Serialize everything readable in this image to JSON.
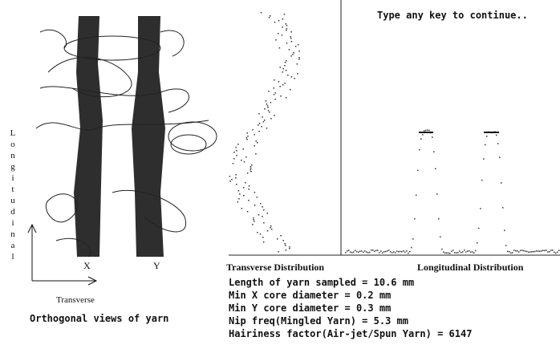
{
  "prompt": "Type any key to continue..",
  "yarn_view": {
    "caption": "Orthogonal views of yarn",
    "x_label": "X",
    "y_label": "Y",
    "axis_vertical": "Longitudinal",
    "axis_horizontal": "Transverse"
  },
  "distributions": {
    "transverse": "Transverse Distribution",
    "longitudinal": "Longitudinal Distribution"
  },
  "results": [
    "Length of yarn sampled = 10.6 mm",
    "Min X core diameter = 0.2 mm",
    "Min Y core diameter = 0.3 mm",
    "Nip freq(Mingled Yarn) = 5.3 mm",
    "Hairiness factor(Air-jet/Spun Yarn) = 6147"
  ]
}
